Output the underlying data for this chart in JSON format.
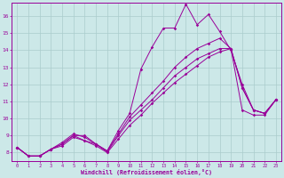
{
  "background_color": "#cce8e8",
  "line_color": "#990099",
  "grid_color": "#aacccc",
  "xlabel": "Windchill (Refroidissement éolien,°C)",
  "xlabel_color": "#990099",
  "tick_color": "#990099",
  "spine_color": "#990099",
  "xlim": [
    -0.5,
    23.5
  ],
  "ylim": [
    7.5,
    16.8
  ],
  "xticks": [
    0,
    1,
    2,
    3,
    4,
    5,
    6,
    7,
    8,
    9,
    10,
    11,
    12,
    13,
    14,
    15,
    16,
    17,
    18,
    19,
    20,
    21,
    22,
    23
  ],
  "yticks": [
    8,
    9,
    10,
    11,
    12,
    13,
    14,
    15,
    16
  ],
  "series": [
    [
      8.3,
      7.8,
      7.8,
      8.2,
      8.5,
      9.0,
      9.0,
      8.5,
      8.1,
      9.3,
      10.3,
      12.9,
      14.2,
      15.3,
      15.3,
      16.7,
      15.5,
      16.1,
      15.1,
      14.0,
      12.0,
      10.5,
      10.3,
      11.1
    ],
    [
      8.3,
      7.8,
      7.8,
      8.2,
      8.5,
      9.0,
      8.7,
      8.5,
      8.05,
      9.0,
      9.9,
      10.5,
      11.1,
      11.8,
      12.5,
      13.0,
      13.5,
      13.8,
      14.1,
      14.1,
      11.8,
      10.5,
      10.3,
      11.1
    ],
    [
      8.3,
      7.8,
      7.8,
      8.2,
      8.6,
      9.1,
      8.9,
      8.5,
      8.1,
      9.1,
      10.1,
      10.8,
      11.5,
      12.2,
      13.0,
      13.6,
      14.1,
      14.4,
      14.7,
      14.1,
      11.8,
      10.5,
      10.3,
      11.1
    ],
    [
      8.3,
      7.8,
      7.8,
      8.2,
      8.4,
      8.9,
      8.7,
      8.4,
      8.0,
      8.8,
      9.6,
      10.2,
      10.9,
      11.5,
      12.1,
      12.6,
      13.1,
      13.6,
      13.9,
      14.1,
      10.5,
      10.2,
      10.2,
      11.1
    ]
  ]
}
